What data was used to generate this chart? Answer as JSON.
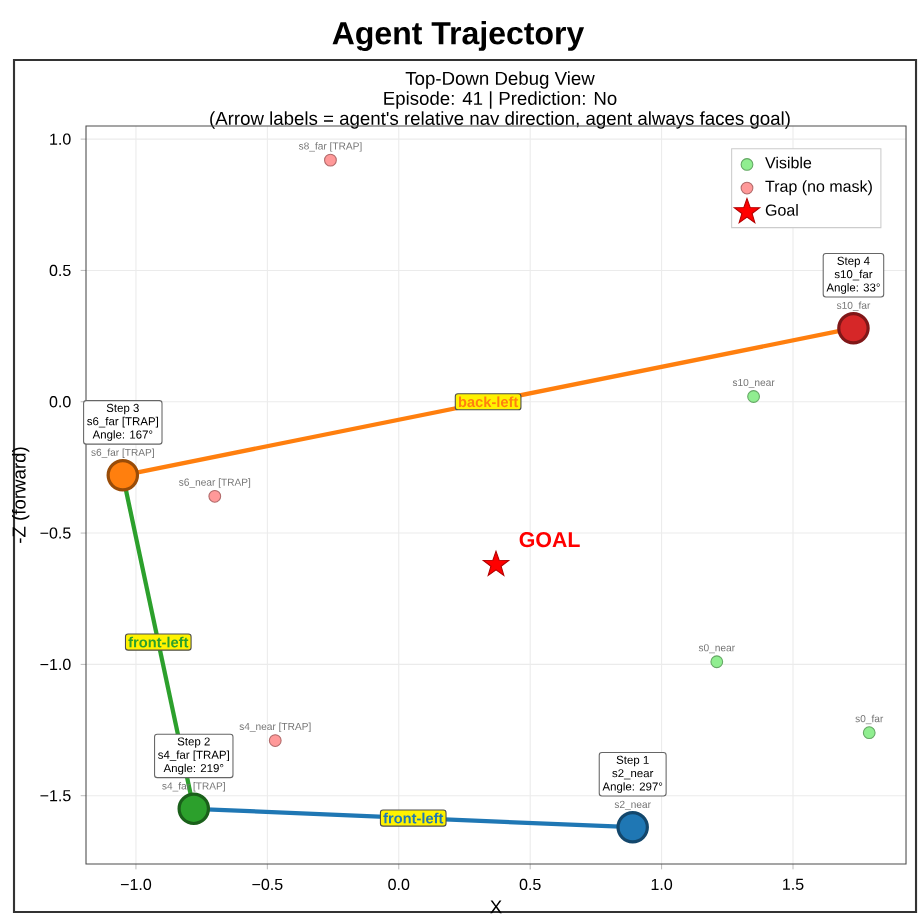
{
  "chart_data": {
    "type": "scatter",
    "title": "Agent Trajectory",
    "subtitle": "Top-Down Debug View",
    "xlabel": "X",
    "ylabel": "-Z (forward)",
    "xlim": [
      -1.19,
      1.93
    ],
    "ylim": [
      -1.76,
      1.05
    ],
    "xticks": [
      {
        "value": -1.0,
        "label": "−1.0"
      },
      {
        "value": -0.5,
        "label": "−0.5"
      },
      {
        "value": 0,
        "label": "0.0"
      },
      {
        "value": 0.5,
        "label": "0.5"
      },
      {
        "value": 1.0,
        "label": "1.0"
      },
      {
        "value": 1.5,
        "label": "1.5"
      }
    ],
    "yticks": [
      {
        "value": -1.5,
        "label": "−1.5"
      },
      {
        "value": -1.0,
        "label": "−1.0"
      },
      {
        "value": -0.5,
        "label": "−0.5"
      },
      {
        "value": 0,
        "label": "0.0"
      },
      {
        "value": 0.5,
        "label": "0.5"
      },
      {
        "value": 1.0,
        "label": "1.0"
      }
    ],
    "grid": true,
    "legend": "top right",
    "series": [
      {
        "type": "line",
        "name": "front-left",
        "color": "#1f77b4",
        "x": [
          0.89,
          -0.78
        ],
        "values": [
          -1.62,
          -1.55
        ]
      },
      {
        "type": "line",
        "name": "front-left",
        "color": "#2ca02c",
        "x": [
          -0.78,
          -1.05
        ],
        "values": [
          -1.55,
          -0.28
        ]
      },
      {
        "type": "line",
        "name": "back-left",
        "color": "#ff7f0e",
        "x": [
          -1.05,
          1.73
        ],
        "values": [
          -0.28,
          0.28
        ]
      },
      {
        "name": "Visible",
        "color": "#90ee90",
        "marker": "circle",
        "x": [
          1.35,
          1.21,
          1.79
        ],
        "values": [
          0.02,
          -0.99,
          -1.26
        ]
      },
      {
        "name": "Trap (no mask)",
        "color": "#ff9999",
        "marker": "circle",
        "x": [
          -0.26,
          -0.7,
          -0.47
        ],
        "values": [
          0.92,
          -0.36,
          -1.29
        ]
      },
      {
        "name": "Goal",
        "color": "#ff0000",
        "marker": "star",
        "x": [
          0.37
        ],
        "values": [
          -0.62
        ]
      },
      {
        "colors": [
          "#1f77b4",
          "#2ca02c",
          "#ff7f0e",
          "#d62728"
        ],
        "marker": "circle",
        "x": [
          0.89,
          -0.78,
          -1.05,
          1.73
        ],
        "values": [
          -1.62,
          -1.55,
          -0.28,
          0.28
        ]
      }
    ],
    "annotations": [
      "Episode: 41 | Prediction: No",
      "(Arrow labels = agent's relative nav direction, agent always faces goal)",
      {
        "text": "s2_near",
        "x": 0.89,
        "y": -1.62
      },
      "Step 1",
      "s2_near",
      "Angle: 297°",
      {
        "text": "s4_far [TRAP]",
        "x": -0.78,
        "y": -1.55
      },
      "Step 2",
      "s4_far [TRAP]",
      "Angle: 219°",
      {
        "text": "s6_far [TRAP]",
        "x": -1.05,
        "y": -0.28
      },
      "Step 3",
      "s6_far [TRAP]",
      "Angle: 167°",
      {
        "text": "s10_far",
        "x": 1.73,
        "y": 0.28
      },
      "Step 4",
      "s10_far",
      "Angle: 33°",
      {
        "text": "GOAL",
        "x": 0.37,
        "y": -0.62
      },
      {
        "text": "s8_far [TRAP]",
        "x": -0.26,
        "y": 0.92
      },
      {
        "text": "s6_near [TRAP]",
        "x": -0.7,
        "y": -0.36
      },
      {
        "text": "s4_near [TRAP]",
        "x": -0.47,
        "y": -1.29
      },
      {
        "text": "s10_near",
        "x": 1.35,
        "y": 0.02
      },
      {
        "text": "s0_near",
        "x": 1.21,
        "y": -0.99
      },
      {
        "text": "s0_far",
        "x": 1.79,
        "y": -1.26
      }
    ]
  }
}
